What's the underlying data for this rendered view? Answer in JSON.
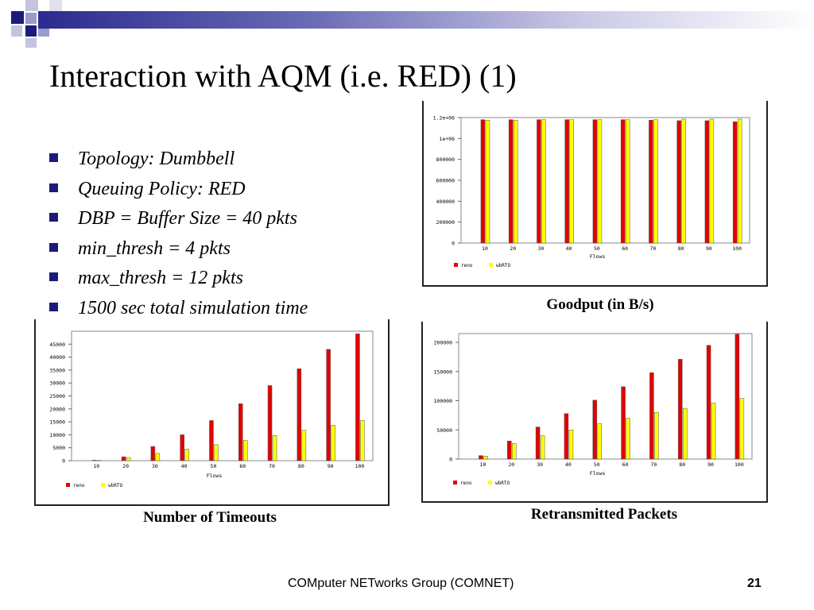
{
  "slide": {
    "title": "Interaction with AQM (i.e. RED) (1)",
    "bullets": [
      "Topology: Dumbbell",
      "Queuing Policy: RED",
      "DBP = Buffer Size = 40 pkts",
      "min_thresh = 4 pkts",
      "max_thresh = 12 pkts",
      "1500 sec total simulation time"
    ],
    "captions": {
      "goodput": "Goodput (in B/s)",
      "timeouts": "Number of Timeouts",
      "retransmitted": "Retransmitted Packets"
    },
    "footer": "COMputer NETworks Group (COMNET)",
    "page_number": "21"
  },
  "colors": {
    "reno": "#e30000",
    "wbRTO": "#ffff00",
    "accent": "#1b1b7a"
  },
  "chart_data": [
    {
      "id": "goodput",
      "type": "bar",
      "title": "",
      "xlabel": "Flows",
      "ylabel": "",
      "categories": [
        "10",
        "20",
        "30",
        "40",
        "50",
        "60",
        "70",
        "80",
        "90",
        "100"
      ],
      "ylim": [
        0,
        1200000
      ],
      "yticks": [
        0,
        200000,
        400000,
        600000,
        800000,
        1000000,
        1200000
      ],
      "ytick_labels": [
        "0",
        "200000",
        "400000",
        "600000",
        "800000",
        "1e+06",
        "1.2e+06"
      ],
      "legend": "bottom-left",
      "series": [
        {
          "name": "reno",
          "values": [
            1180000,
            1180000,
            1180000,
            1180000,
            1180000,
            1180000,
            1175000,
            1170000,
            1170000,
            1160000
          ]
        },
        {
          "name": "wbRTO",
          "values": [
            1175000,
            1175000,
            1180000,
            1180000,
            1180000,
            1180000,
            1180000,
            1185000,
            1185000,
            1185000
          ]
        }
      ]
    },
    {
      "id": "timeouts",
      "type": "bar",
      "title": "",
      "xlabel": "Flows",
      "ylabel": "",
      "categories": [
        "10",
        "20",
        "30",
        "40",
        "50",
        "60",
        "70",
        "80",
        "90",
        "100"
      ],
      "ylim": [
        0,
        50000
      ],
      "yticks": [
        0,
        5000,
        10000,
        15000,
        20000,
        25000,
        30000,
        35000,
        40000,
        45000
      ],
      "ytick_labels": [
        "0",
        "5000",
        "10000",
        "15000",
        "20000",
        "25000",
        "30000",
        "35000",
        "40000",
        "45000"
      ],
      "legend": "bottom-left",
      "series": [
        {
          "name": "reno",
          "values": [
            200,
            1500,
            5500,
            10000,
            15500,
            22000,
            29000,
            35500,
            43000,
            49000
          ]
        },
        {
          "name": "wbRTO",
          "values": [
            100,
            1200,
            2800,
            4500,
            6200,
            7800,
            9700,
            11700,
            13700,
            15500
          ]
        }
      ]
    },
    {
      "id": "retransmitted",
      "type": "bar",
      "title": "",
      "xlabel": "Flows",
      "ylabel": "",
      "categories": [
        "10",
        "20",
        "30",
        "40",
        "50",
        "60",
        "70",
        "80",
        "90",
        "100"
      ],
      "ylim": [
        0,
        215000
      ],
      "yticks": [
        0,
        50000,
        100000,
        150000,
        200000
      ],
      "ytick_labels": [
        "0",
        "50000",
        "100000",
        "150000",
        "200000"
      ],
      "legend": "bottom-left",
      "series": [
        {
          "name": "reno",
          "values": [
            6000,
            31000,
            55000,
            78000,
            101000,
            124000,
            148000,
            171000,
            195000,
            214000
          ]
        },
        {
          "name": "wbRTO",
          "values": [
            5000,
            27000,
            40000,
            50000,
            61000,
            70000,
            80000,
            87000,
            96000,
            104000
          ]
        }
      ]
    }
  ]
}
